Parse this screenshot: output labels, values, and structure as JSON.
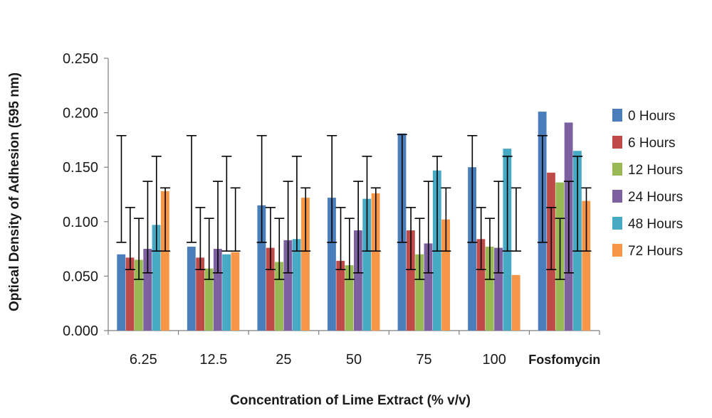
{
  "chart_data": {
    "type": "bar",
    "title": "",
    "xlabel": "Concentration of Lime Extract (% v/v)",
    "ylabel": "Optical Density of Adhesion (595 nm)",
    "ylim": [
      0,
      0.25
    ],
    "yticks": [
      "0.000",
      "0.050",
      "0.100",
      "0.150",
      "0.200",
      "0.250"
    ],
    "grid": false,
    "legend_position": "right",
    "categories": [
      "6.25",
      "12.5",
      "25",
      "50",
      "75",
      "100",
      "Fosfomycin"
    ],
    "series": [
      {
        "name": "0 Hours",
        "color": "#4a7ebb",
        "values": [
          0.07,
          0.077,
          0.115,
          0.122,
          0.181,
          0.15,
          0.201
        ],
        "error_bars": [
          [
            0.081,
            0.179
          ],
          [
            0.081,
            0.179
          ],
          [
            0.081,
            0.179
          ],
          [
            0.081,
            0.179
          ],
          [
            0.081,
            0.18
          ],
          [
            0.081,
            0.179
          ],
          [
            0.081,
            0.179
          ]
        ]
      },
      {
        "name": "6 Hours",
        "color": "#be4b48",
        "values": [
          0.067,
          0.067,
          0.076,
          0.064,
          0.092,
          0.084,
          0.145
        ],
        "error_bars": [
          [
            0.056,
            0.113
          ],
          [
            0.056,
            0.113
          ],
          [
            0.056,
            0.113
          ],
          [
            0.056,
            0.113
          ],
          [
            0.056,
            0.113
          ],
          [
            0.056,
            0.113
          ],
          [
            0.056,
            0.113
          ]
        ]
      },
      {
        "name": "12 Hours",
        "color": "#98b954",
        "values": [
          0.065,
          0.057,
          0.063,
          0.06,
          0.07,
          0.077,
          0.136
        ],
        "error_bars": [
          [
            0.047,
            0.103
          ],
          [
            0.047,
            0.103
          ],
          [
            0.047,
            0.103
          ],
          [
            0.047,
            0.103
          ],
          [
            0.047,
            0.103
          ],
          [
            0.047,
            0.103
          ],
          [
            0.047,
            0.103
          ]
        ]
      },
      {
        "name": "24 Hours",
        "color": "#7d60a0",
        "values": [
          0.075,
          0.075,
          0.083,
          0.092,
          0.08,
          0.076,
          0.191
        ],
        "error_bars": [
          [
            0.053,
            0.137
          ],
          [
            0.053,
            0.137
          ],
          [
            0.053,
            0.137
          ],
          [
            0.053,
            0.137
          ],
          [
            0.053,
            0.137
          ],
          [
            0.053,
            0.137
          ],
          [
            0.053,
            0.137
          ]
        ]
      },
      {
        "name": "48 Hours",
        "color": "#46aac5",
        "values": [
          0.097,
          0.07,
          0.084,
          0.121,
          0.147,
          0.167,
          0.165
        ],
        "error_bars": [
          [
            0.073,
            0.16
          ],
          [
            0.073,
            0.16
          ],
          [
            0.073,
            0.16
          ],
          [
            0.073,
            0.16
          ],
          [
            0.073,
            0.16
          ],
          [
            0.073,
            0.16
          ],
          [
            0.073,
            0.16
          ]
        ]
      },
      {
        "name": "72 Hours",
        "color": "#f79646",
        "values": [
          0.128,
          0.072,
          0.122,
          0.126,
          0.102,
          0.051,
          0.119
        ],
        "error_bars": [
          [
            0.073,
            0.131
          ],
          [
            0.073,
            0.131
          ],
          [
            0.073,
            0.131
          ],
          [
            0.073,
            0.131
          ],
          [
            0.073,
            0.131
          ],
          [
            0.073,
            0.131
          ],
          [
            0.073,
            0.131
          ]
        ]
      }
    ]
  }
}
